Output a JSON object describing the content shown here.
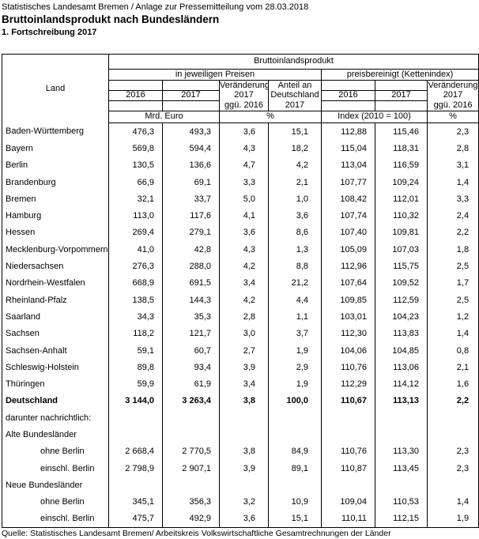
{
  "page": {
    "supertitle": "Statistisches Landesamt Bremen / Anlage zur Pressemitteilung vom 28.03.2018",
    "title": "Bruttoinlandsprodukt nach Bundesländern",
    "subtitle": "1. Fortschreibung 2017",
    "source": "Quelle: Statistisches Landesamt Bremen/ Arbeitskreis Volkswirtschaftliche Gesamtrechnungen der Länder"
  },
  "table": {
    "corner_label": "Land",
    "group_header": "Bruttoinlandsprodukt",
    "subgroups": {
      "nominal": "in jeweiligen Preisen",
      "real": "preisbereinigt (Kettenindex)"
    },
    "col_headers": [
      [
        "",
        "2016",
        ""
      ],
      [
        "",
        "2017",
        ""
      ],
      [
        "Veränderung",
        "2017",
        "ggü. 2016"
      ],
      [
        "Anteil an",
        "Deutschland",
        "2017"
      ],
      [
        "",
        "2016",
        ""
      ],
      [
        "",
        "2017",
        ""
      ],
      [
        "Veränderung",
        "2017",
        "ggü. 2016"
      ]
    ],
    "units": {
      "nominal": "Mrd. Euro",
      "nominal_pct": "%",
      "index": "Index (2010 = 100)",
      "index_pct": "%"
    },
    "rows": [
      {
        "label": "Baden-Württemberg",
        "indent": false,
        "bold": false,
        "values": [
          "476,3",
          "493,3",
          "3,6",
          "15,1",
          "112,88",
          "115,46",
          "2,3"
        ]
      },
      {
        "label": "Bayern",
        "indent": false,
        "bold": false,
        "values": [
          "569,8",
          "594,4",
          "4,3",
          "18,2",
          "115,04",
          "118,31",
          "2,8"
        ]
      },
      {
        "label": "Berlin",
        "indent": false,
        "bold": false,
        "values": [
          "130,5",
          "136,6",
          "4,7",
          "4,2",
          "113,04",
          "116,59",
          "3,1"
        ]
      },
      {
        "label": "Brandenburg",
        "indent": false,
        "bold": false,
        "values": [
          "66,9",
          "69,1",
          "3,3",
          "2,1",
          "107,77",
          "109,24",
          "1,4"
        ]
      },
      {
        "label": "Bremen",
        "indent": false,
        "bold": false,
        "values": [
          "32,1",
          "33,7",
          "5,0",
          "1,0",
          "108,42",
          "112,01",
          "3,3"
        ]
      },
      {
        "label": "Hamburg",
        "indent": false,
        "bold": false,
        "values": [
          "113,0",
          "117,6",
          "4,1",
          "3,6",
          "107,74",
          "110,32",
          "2,4"
        ]
      },
      {
        "label": "Hessen",
        "indent": false,
        "bold": false,
        "values": [
          "269,4",
          "279,1",
          "3,6",
          "8,6",
          "107,40",
          "109,81",
          "2,2"
        ]
      },
      {
        "label": "Mecklenburg-Vorpommern",
        "indent": false,
        "bold": false,
        "values": [
          "41,0",
          "42,8",
          "4,3",
          "1,3",
          "105,09",
          "107,03",
          "1,8"
        ]
      },
      {
        "label": "Niedersachsen",
        "indent": false,
        "bold": false,
        "values": [
          "276,3",
          "288,0",
          "4,2",
          "8,8",
          "112,96",
          "115,75",
          "2,5"
        ]
      },
      {
        "label": "Nordrhein-Westfalen",
        "indent": false,
        "bold": false,
        "values": [
          "668,9",
          "691,5",
          "3,4",
          "21,2",
          "107,64",
          "109,52",
          "1,7"
        ]
      },
      {
        "label": "Rheinland-Pfalz",
        "indent": false,
        "bold": false,
        "values": [
          "138,5",
          "144,3",
          "4,2",
          "4,4",
          "109,85",
          "112,59",
          "2,5"
        ]
      },
      {
        "label": "Saarland",
        "indent": false,
        "bold": false,
        "values": [
          "34,3",
          "35,3",
          "2,8",
          "1,1",
          "103,01",
          "104,23",
          "1,2"
        ]
      },
      {
        "label": "Sachsen",
        "indent": false,
        "bold": false,
        "values": [
          "118,2",
          "121,7",
          "3,0",
          "3,7",
          "112,30",
          "113,83",
          "1,4"
        ]
      },
      {
        "label": "Sachsen-Anhalt",
        "indent": false,
        "bold": false,
        "values": [
          "59,1",
          "60,7",
          "2,7",
          "1,9",
          "104,06",
          "104,85",
          "0,8"
        ]
      },
      {
        "label": "Schleswig-Holstein",
        "indent": false,
        "bold": false,
        "values": [
          "89,8",
          "93,4",
          "3,9",
          "2,9",
          "110,76",
          "113,06",
          "2,1"
        ]
      },
      {
        "label": "Thüringen",
        "indent": false,
        "bold": false,
        "values": [
          "59,9",
          "61,9",
          "3,4",
          "1,9",
          "112,29",
          "114,12",
          "1,6"
        ]
      },
      {
        "label": "Deutschland",
        "indent": false,
        "bold": true,
        "values": [
          "3 144,0",
          "3 263,4",
          "3,8",
          "100,0",
          "110,67",
          "113,13",
          "2,2"
        ]
      },
      {
        "label": "darunter nachrichtlich:",
        "indent": false,
        "bold": false,
        "values": null
      },
      {
        "label": "Alte Bundesländer",
        "indent": false,
        "bold": false,
        "values": null
      },
      {
        "label": "ohne Berlin",
        "indent": true,
        "bold": false,
        "values": [
          "2 668,4",
          "2 770,5",
          "3,8",
          "84,9",
          "110,76",
          "113,30",
          "2,3"
        ]
      },
      {
        "label": "einschl. Berlin",
        "indent": true,
        "bold": false,
        "values": [
          "2 798,9",
          "2 907,1",
          "3,9",
          "89,1",
          "110,87",
          "113,45",
          "2,3"
        ]
      },
      {
        "label": "Neue Bundesländer",
        "indent": false,
        "bold": false,
        "values": null
      },
      {
        "label": "ohne Berlin",
        "indent": true,
        "bold": false,
        "values": [
          "345,1",
          "356,3",
          "3,2",
          "10,9",
          "109,04",
          "110,53",
          "1,4"
        ]
      },
      {
        "label": "einschl. Berlin",
        "indent": true,
        "bold": false,
        "values": [
          "475,7",
          "492,9",
          "3,6",
          "15,1",
          "110,11",
          "112,15",
          "1,9"
        ]
      }
    ]
  }
}
